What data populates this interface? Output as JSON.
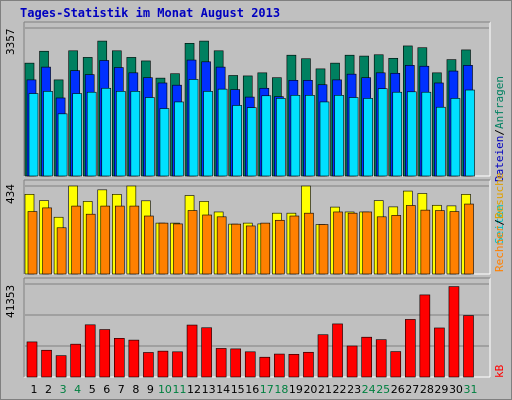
{
  "chart_data": {
    "type": "bar",
    "title": "Tages-Statistik im Monat August 2013",
    "categories": [
      "1",
      "2",
      "3",
      "4",
      "5",
      "6",
      "7",
      "8",
      "9",
      "10",
      "11",
      "12",
      "13",
      "14",
      "15",
      "16",
      "17",
      "18",
      "19",
      "20",
      "21",
      "22",
      "23",
      "24",
      "25",
      "26",
      "27",
      "28",
      "29",
      "30",
      "31"
    ],
    "weekend_days": [
      3,
      4,
      10,
      11,
      17,
      18,
      24,
      25,
      31
    ],
    "colors": {
      "title": "#0000c0",
      "weekday_label": "#000000",
      "weekend_label": "#008040",
      "anfragen": "#008060",
      "dateien": "#0030ff",
      "seiten": "#00e0ff",
      "besuche": "#ffff00",
      "rechner": "#ff8000",
      "kb": "#ff0000",
      "legend_anfragen": "#008060",
      "legend_dateien": "#0000c0",
      "legend_seiten": "#00c0c0",
      "legend_besuche": "#e0a000",
      "legend_rechner": "#ff8000",
      "legend_kb": "#ff0000"
    },
    "panels": [
      {
        "name": "top",
        "ymax_label": "3357",
        "ylim": [
          0,
          3357
        ],
        "series": [
          {
            "name": "Anfragen",
            "values": [
              2560,
              2830,
              2180,
              2840,
              2690,
              3060,
              2840,
              2690,
              2610,
              2220,
              2320,
              3010,
              3060,
              2840,
              2280,
              2270,
              2340,
              2230,
              2740,
              2660,
              2430,
              2560,
              2740,
              2720,
              2750,
              2670,
              2950,
              2910,
              2340,
              2640,
              2860
            ]
          },
          {
            "name": "Dateien",
            "values": [
              2180,
              2470,
              1770,
              2390,
              2300,
              2620,
              2460,
              2340,
              2230,
              2110,
              2060,
              2630,
              2590,
              2470,
              1960,
              1790,
              1990,
              1800,
              2170,
              2170,
              2070,
              2180,
              2310,
              2230,
              2340,
              2330,
              2510,
              2490,
              2110,
              2380,
              2510
            ]
          },
          {
            "name": "Seiten",
            "values": [
              1870,
              1920,
              1410,
              1870,
              1900,
              1990,
              1920,
              1920,
              1780,
              1530,
              1680,
              2190,
              1920,
              1970,
              1600,
              1550,
              1820,
              1760,
              1830,
              1830,
              1680,
              1830,
              1780,
              1760,
              1980,
              1900,
              1910,
              1900,
              1560,
              1760,
              1950
            ]
          }
        ]
      },
      {
        "name": "middle",
        "ymax_label": "434",
        "ylim": [
          0,
          434
        ],
        "series": [
          {
            "name": "Besuche",
            "values": [
              393,
              362,
              280,
              434,
              358,
              415,
              393,
              434,
              361,
              251,
              251,
              387,
              358,
              306,
              246,
              251,
              247,
              300,
              300,
              434,
              244,
              330,
              306,
              306,
              362,
              331,
              409,
              397,
              339,
              336,
              393
            ]
          },
          {
            "name": "Rechner",
            "values": [
              308,
              326,
              228,
              335,
              295,
              335,
              335,
              335,
              286,
              251,
              247,
              313,
              291,
              282,
              246,
              237,
              251,
              265,
              286,
              300,
              244,
              306,
              300,
              306,
              282,
              289,
              338,
              315,
              313,
              308,
              345
            ]
          }
        ]
      },
      {
        "name": "bottom",
        "ymax_label": "41353",
        "ylim": [
          0,
          41353
        ],
        "series": [
          {
            "name": "kB",
            "values": [
              15600,
              11900,
              9500,
              14600,
              23200,
              21100,
              17200,
              16400,
              10900,
              11500,
              11200,
              23100,
              21900,
              12700,
              12500,
              11200,
              8800,
              10200,
              10100,
              11000,
              18800,
              23600,
              13800,
              17700,
              16600,
              11300,
              25600,
              36500,
              21800,
              40200,
              27300
            ]
          }
        ]
      }
    ],
    "right_labels": {
      "top": [
        "Dateien",
        "/",
        "Anfragen"
      ],
      "seiten": "Seiten",
      "middle": [
        "Rechner",
        "/",
        "Besuche"
      ],
      "bottom": "kB"
    }
  }
}
